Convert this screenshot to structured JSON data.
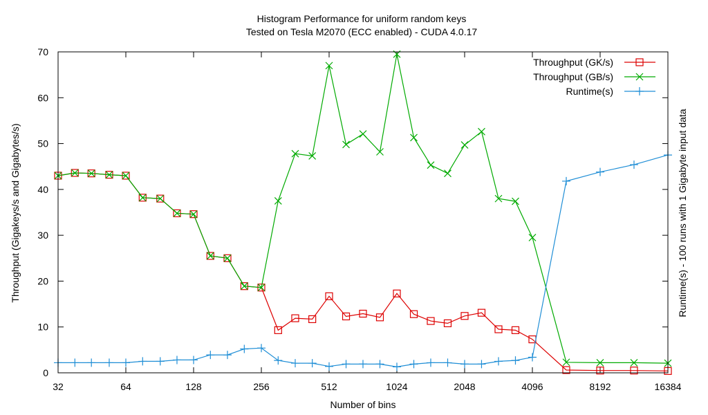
{
  "chart_data": {
    "type": "line",
    "title": "Histogram Performance for uniform random keys",
    "subtitle": "Tested on Tesla M2070 (ECC enabled) - CUDA 4.0.17",
    "xlabel": "Number of bins",
    "ylabel": "Throughput (Gigakeys/s and Gigabytes/s)",
    "y2label": "Runtime(s) - 100 runs with 1 Gigabyte input data",
    "x_scale": "log2",
    "xlim": [
      32,
      16384
    ],
    "ylim": [
      0,
      70
    ],
    "y2lim": [
      0,
      70
    ],
    "x_ticks": [
      32,
      64,
      128,
      256,
      512,
      1024,
      2048,
      4096,
      8192,
      16384
    ],
    "y_ticks": [
      0,
      10,
      20,
      30,
      40,
      50,
      60,
      70
    ],
    "grid": false,
    "legend_position": "top-right",
    "x": [
      32,
      38,
      45,
      54,
      64,
      76,
      91,
      108,
      128,
      152,
      181,
      215,
      256,
      304,
      362,
      431,
      512,
      609,
      724,
      861,
      1024,
      1218,
      1448,
      1722,
      2048,
      2435,
      2896,
      3444,
      4096,
      5793,
      8192,
      11585,
      16384
    ],
    "series": [
      {
        "name": "Throughput (GK/s)",
        "color": "#dd0000",
        "marker": "square",
        "values": [
          43,
          43.6,
          43.5,
          43.2,
          43,
          38.2,
          38,
          34.8,
          34.6,
          25.5,
          25,
          18.9,
          18.6,
          9.3,
          11.9,
          11.7,
          16.7,
          12.3,
          12.9,
          12.1,
          17.3,
          12.8,
          11.3,
          10.8,
          12.4,
          13.1,
          9.5,
          9.3,
          7.3,
          0.6,
          0.5,
          0.5,
          0.4
        ]
      },
      {
        "name": "Throughput (GB/s)",
        "color": "#00aa00",
        "marker": "cross",
        "values": [
          43,
          43.6,
          43.5,
          43.2,
          43,
          38.2,
          38,
          34.8,
          34.6,
          25.5,
          25,
          18.9,
          18.6,
          37.5,
          47.8,
          47.3,
          67,
          49.8,
          52.1,
          48.2,
          69.5,
          51.3,
          45.3,
          43.5,
          49.7,
          52.6,
          38,
          37.4,
          29.5,
          2.3,
          2.2,
          2.2,
          2.1
        ]
      },
      {
        "name": "Runtime(s)",
        "color": "#1f8ed6",
        "marker": "plus",
        "axis": "y2",
        "values": [
          2.2,
          2.2,
          2.2,
          2.2,
          2.2,
          2.5,
          2.5,
          2.8,
          2.8,
          3.9,
          3.9,
          5.2,
          5.4,
          2.7,
          2.1,
          2.1,
          1.4,
          1.9,
          1.9,
          1.9,
          1.3,
          1.9,
          2.2,
          2.2,
          1.9,
          1.9,
          2.5,
          2.7,
          3.4,
          41.8,
          43.8,
          45.4,
          47.5
        ]
      }
    ]
  }
}
